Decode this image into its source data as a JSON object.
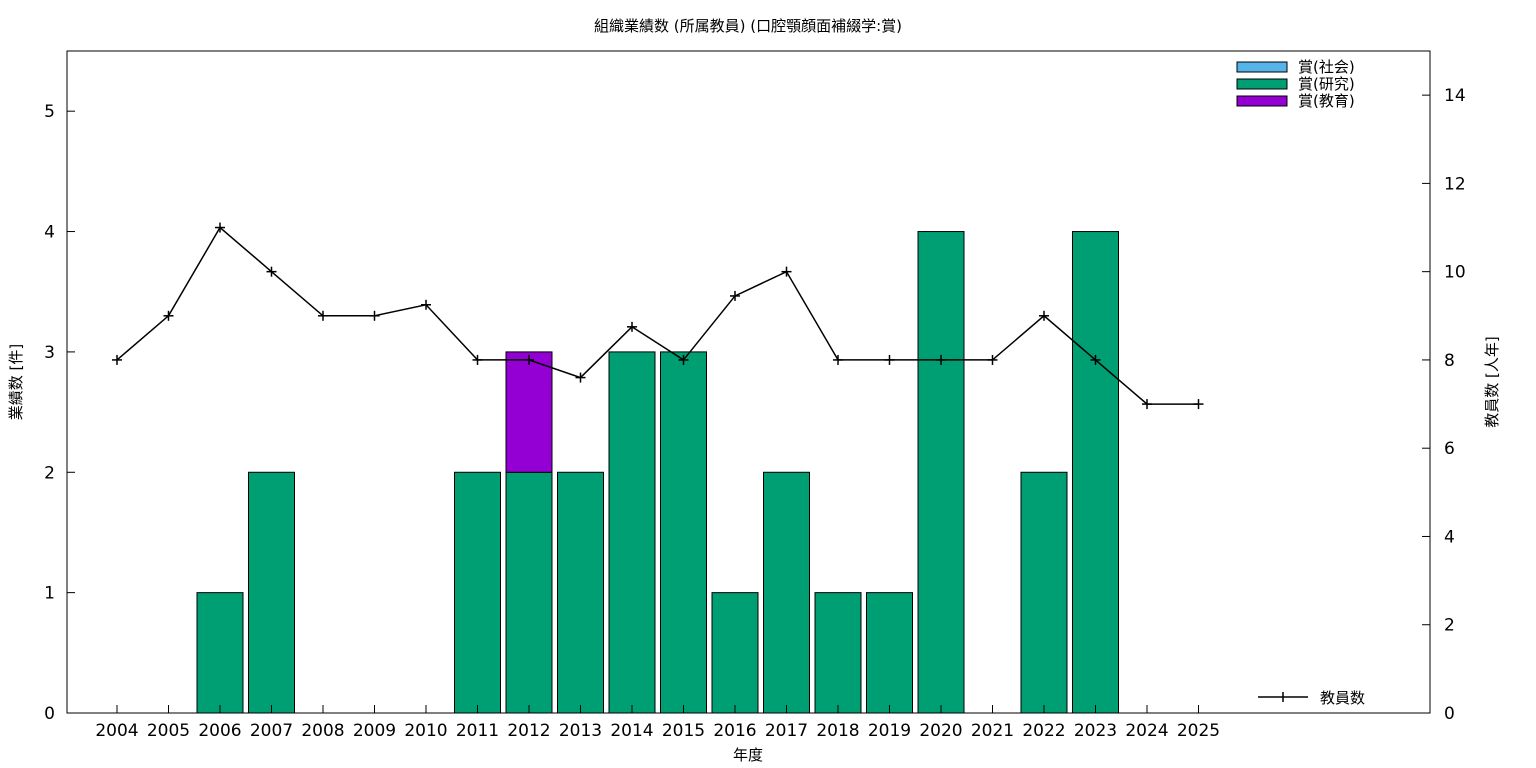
{
  "chart_data": {
    "type": "bar",
    "title": "組織業績数 (所属教員) (口腔顎顔面補綴学:賞)",
    "xlabel": "年度",
    "ylabel": "業績数 [件]",
    "y2label": "教員数 [人年]",
    "categories": [
      "2004",
      "2005",
      "2006",
      "2007",
      "2008",
      "2009",
      "2010",
      "2011",
      "2012",
      "2013",
      "2014",
      "2015",
      "2016",
      "2017",
      "2018",
      "2019",
      "2020",
      "2021",
      "2022",
      "2023",
      "2024",
      "2025"
    ],
    "ylim": [
      0,
      5.5
    ],
    "y2lim": [
      0,
      15
    ],
    "yticks": [
      0,
      1,
      2,
      3,
      4,
      5
    ],
    "y2ticks": [
      0,
      2,
      4,
      6,
      8,
      10,
      12,
      14
    ],
    "stacked": true,
    "grid": false,
    "legend_position": "top-right",
    "series": [
      {
        "name": "賞(社会)",
        "color": "#56b4e9",
        "values": [
          0,
          0,
          0,
          0,
          0,
          0,
          0,
          0,
          0,
          0,
          0,
          0,
          0,
          0,
          0,
          0,
          0,
          0,
          0,
          0,
          0,
          0
        ]
      },
      {
        "name": "賞(研究)",
        "color": "#009e73",
        "values": [
          0,
          0,
          1,
          2,
          0,
          0,
          0,
          2,
          2,
          2,
          3,
          3,
          1,
          2,
          1,
          1,
          4,
          0,
          2,
          4,
          0,
          0
        ]
      },
      {
        "name": "賞(教育)",
        "color": "#9400d3",
        "values": [
          0,
          0,
          0,
          0,
          0,
          0,
          0,
          0,
          1,
          0,
          0,
          0,
          0,
          0,
          0,
          0,
          0,
          0,
          0,
          0,
          0,
          0
        ]
      }
    ],
    "line_series": {
      "name": "教員数",
      "axis": "y2",
      "color": "#000000",
      "values": [
        8,
        9,
        11,
        10,
        9,
        9,
        9.25,
        8,
        8,
        7.6,
        8.75,
        8,
        9.45,
        10,
        8,
        8,
        8,
        8,
        9,
        8,
        7,
        7
      ]
    }
  }
}
